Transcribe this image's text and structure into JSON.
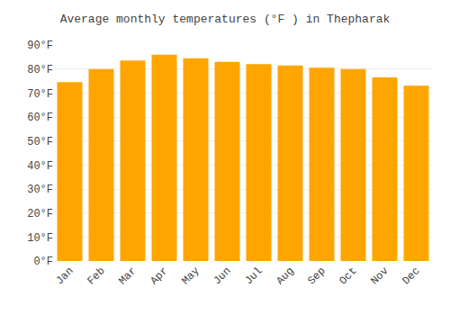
{
  "chart_data": {
    "type": "bar",
    "title": "Average monthly temperatures (°F ) in Thepharak",
    "categories": [
      "Jan",
      "Feb",
      "Mar",
      "Apr",
      "May",
      "Jun",
      "Jul",
      "Aug",
      "Sep",
      "Oct",
      "Nov",
      "Dec"
    ],
    "values": [
      74.5,
      80.0,
      83.5,
      86.0,
      84.5,
      83.0,
      82.0,
      81.5,
      80.5,
      80.0,
      76.5,
      73.0
    ],
    "color": "#FFA500",
    "ylim": [
      0,
      90
    ],
    "yticks": [
      {
        "value": 0,
        "label": "0°F"
      },
      {
        "value": 10,
        "label": "10°F"
      },
      {
        "value": 20,
        "label": "20°F"
      },
      {
        "value": 30,
        "label": "30°F"
      },
      {
        "value": 40,
        "label": "40°F"
      },
      {
        "value": 50,
        "label": "50°F"
      },
      {
        "value": 60,
        "label": "60°F"
      },
      {
        "value": 70,
        "label": "70°F"
      },
      {
        "value": 80,
        "label": "80°F"
      },
      {
        "value": 90,
        "label": "90°F"
      }
    ],
    "grid": true
  }
}
